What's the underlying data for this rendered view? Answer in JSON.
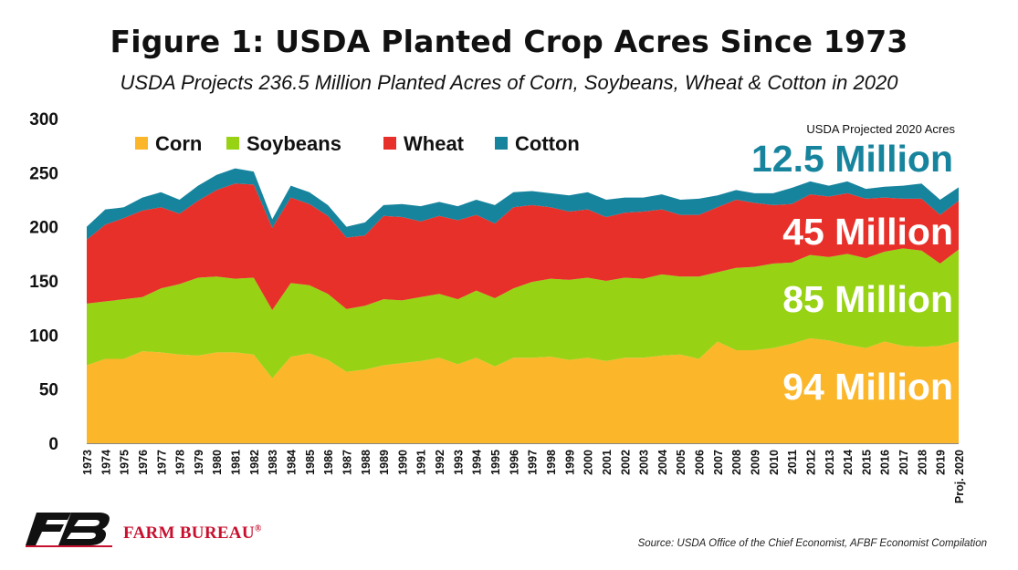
{
  "title": "Figure 1: USDA Planted Crop Acres Since 1973",
  "subtitle": "USDA Projects 236.5 Million Planted Acres of Corn, Soybeans, Wheat & Cotton in 2020",
  "source": "Source: USDA Office of the Chief Economist, AFBF Economist Compilation",
  "brand": "FARM BUREAU",
  "brand_mark": "®",
  "chart_data": {
    "type": "area",
    "stacked": true,
    "x": [
      "1973",
      "1974",
      "1975",
      "1976",
      "1977",
      "1978",
      "1979",
      "1980",
      "1981",
      "1982",
      "1983",
      "1984",
      "1985",
      "1986",
      "1987",
      "1988",
      "1989",
      "1990",
      "1991",
      "1992",
      "1993",
      "1994",
      "1995",
      "1996",
      "1997",
      "1998",
      "1999",
      "2000",
      "2001",
      "2002",
      "2003",
      "2004",
      "2005",
      "2006",
      "2007",
      "2008",
      "2009",
      "2010",
      "2011",
      "2012",
      "2013",
      "2014",
      "2015",
      "2016",
      "2017",
      "2018",
      "2019",
      "Proj. 2020"
    ],
    "ylim": [
      0,
      300
    ],
    "yticks": [
      0,
      50,
      100,
      150,
      200,
      250,
      300
    ],
    "grid": false,
    "legend": "top-left",
    "series": [
      {
        "name": "Corn",
        "color": "#fbb62a",
        "values": [
          72,
          78,
          78,
          85,
          84,
          82,
          81,
          84,
          84,
          82,
          60,
          80,
          83,
          77,
          66,
          68,
          72,
          74,
          76,
          79,
          73,
          79,
          71,
          79,
          79,
          80,
          77,
          79,
          76,
          79,
          79,
          81,
          82,
          78,
          94,
          86,
          86,
          88,
          92,
          97,
          95,
          91,
          88,
          94,
          90,
          89,
          90,
          94
        ]
      },
      {
        "name": "Soybeans",
        "color": "#97d314",
        "values": [
          57,
          53,
          55,
          50,
          59,
          65,
          72,
          70,
          68,
          71,
          63,
          68,
          63,
          61,
          58,
          59,
          61,
          58,
          59,
          59,
          60,
          62,
          63,
          64,
          70,
          72,
          74,
          74,
          74,
          74,
          73,
          75,
          72,
          76,
          64,
          76,
          77,
          78,
          75,
          77,
          77,
          84,
          83,
          83,
          90,
          89,
          76,
          85
        ]
      },
      {
        "name": "Wheat",
        "color": "#e8302a",
        "values": [
          59,
          71,
          75,
          80,
          75,
          65,
          71,
          80,
          88,
          86,
          76,
          79,
          75,
          72,
          66,
          65,
          77,
          77,
          70,
          72,
          73,
          70,
          69,
          75,
          71,
          66,
          63,
          63,
          59,
          60,
          62,
          60,
          57,
          57,
          60,
          63,
          59,
          54,
          54,
          56,
          56,
          56,
          55,
          50,
          46,
          48,
          45,
          45
        ]
      },
      {
        "name": "Cotton",
        "color": "#17849e",
        "values": [
          12,
          14,
          10,
          12,
          14,
          13,
          14,
          14,
          14,
          12,
          8,
          11,
          11,
          10,
          10,
          12,
          10,
          12,
          14,
          13,
          13,
          14,
          17,
          14,
          13,
          13,
          15,
          16,
          16,
          14,
          13,
          14,
          14,
          15,
          11,
          9,
          9,
          11,
          15,
          12,
          10,
          11,
          9,
          10,
          12,
          14,
          14,
          12.5
        ]
      }
    ],
    "annotations": {
      "header": "USDA Projected 2020 Acres",
      "cotton": "12.5 Million",
      "wheat": "45 Million",
      "soybeans": "85 Million",
      "corn": "94 Million"
    }
  }
}
